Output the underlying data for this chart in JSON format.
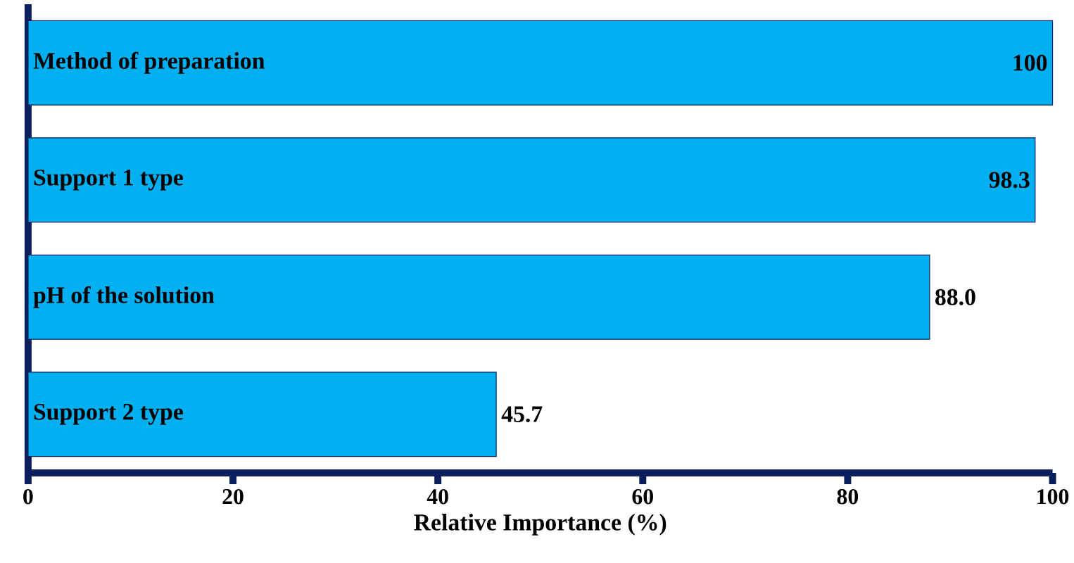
{
  "chart_data": {
    "type": "bar",
    "orientation": "horizontal",
    "xlabel": "Relative Importance (%)",
    "categories": [
      "Method of preparation",
      "Support 1 type",
      "pH of the solution",
      "Support 2 type"
    ],
    "values": [
      100,
      98.3,
      88.0,
      45.7
    ],
    "value_labels": [
      "100",
      "98.3",
      "88.0",
      "45.7"
    ],
    "color": "#00b0f0",
    "xlim": [
      0,
      100
    ],
    "xticks": [
      0,
      20,
      40,
      60,
      80,
      100
    ]
  }
}
